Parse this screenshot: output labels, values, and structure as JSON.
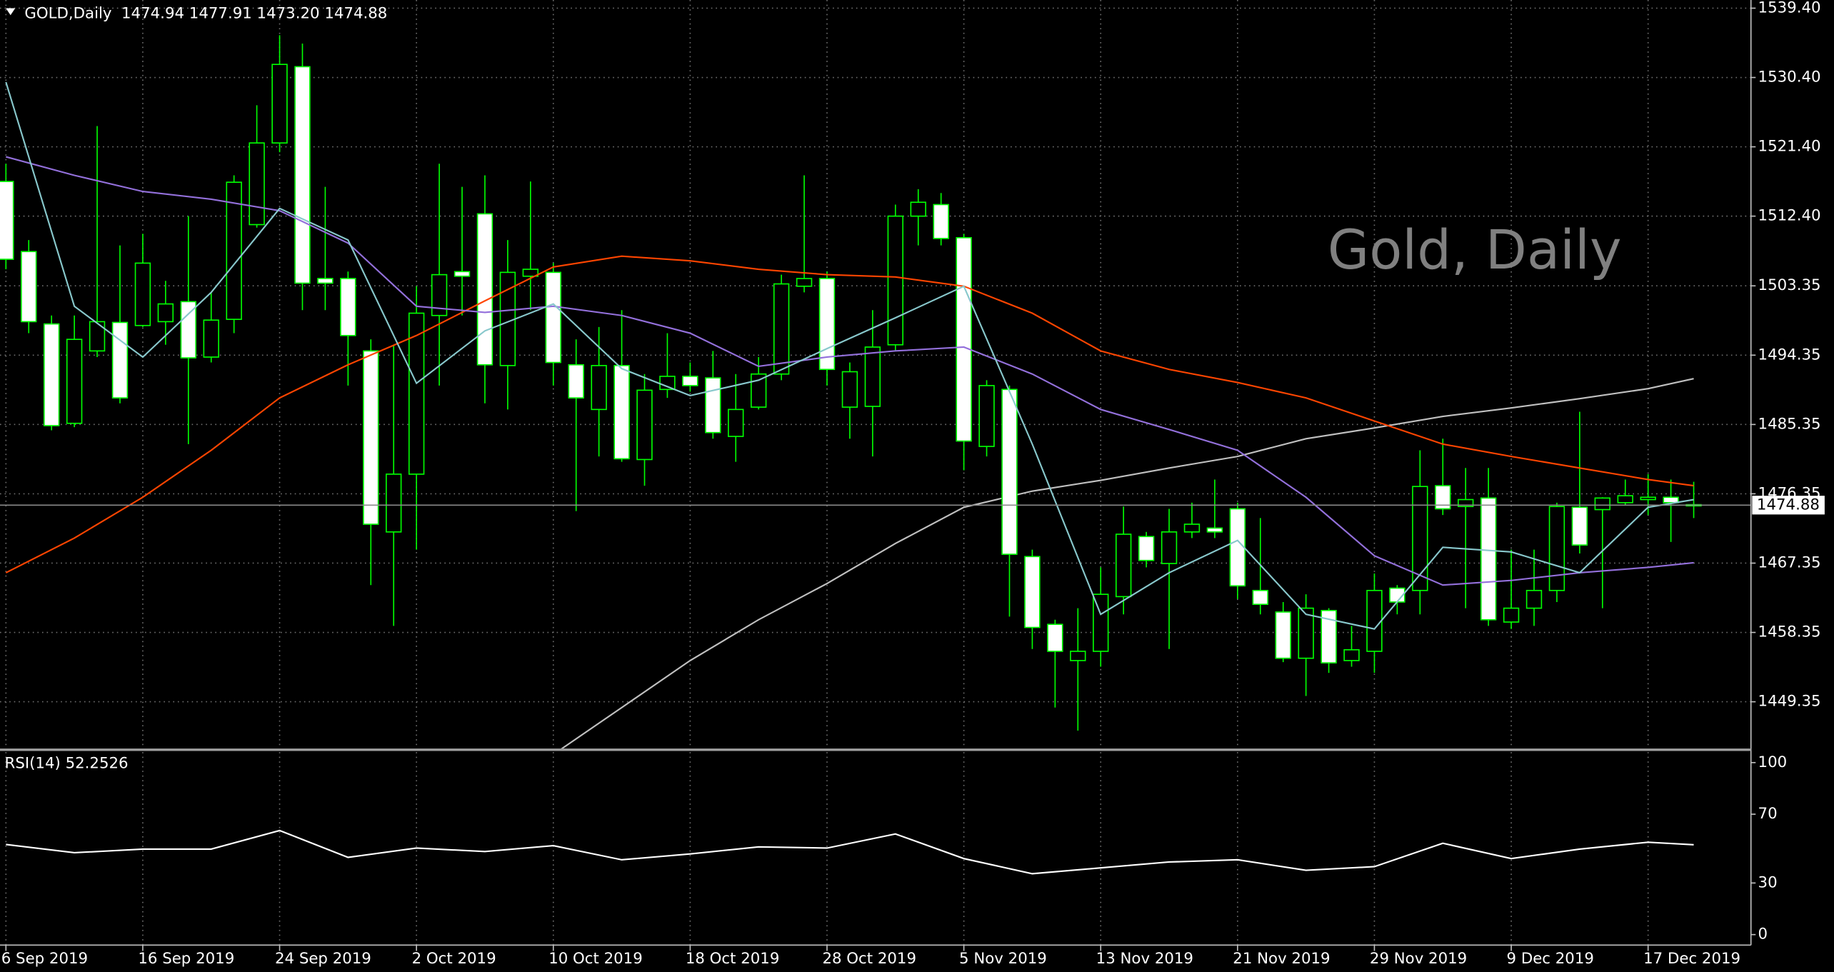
{
  "chart_data": [
    {
      "type": "candlestick",
      "header": "GOLD,Daily  1474.94 1477.91 1473.20 1474.88",
      "watermark": "Gold, Daily",
      "up_color": "#000000",
      "down_color": "#ffffff",
      "wick_color": "#00ff00",
      "grid": true,
      "xlim": [
        -0.26,
        76.51
      ],
      "ylim": [
        1443.27,
        1540.46
      ],
      "yticks": [
        {
          "value": 1539.4,
          "label": "1539.40"
        },
        {
          "value": 1530.4,
          "label": "1530.40"
        },
        {
          "value": 1521.4,
          "label": "1521.40"
        },
        {
          "value": 1512.4,
          "label": "1512.40"
        },
        1503.35,
        1494.35,
        1485.35,
        1476.35,
        1467.35,
        1458.35,
        1449.35
      ],
      "xticks": [
        {
          "value": 0,
          "label": "6 Sep 2019"
        },
        {
          "value": 6,
          "label": "16 Sep 2019"
        },
        {
          "value": 12,
          "label": "24 Sep 2019"
        },
        {
          "value": 18,
          "label": "2 Oct 2019"
        },
        {
          "value": 24,
          "label": "10 Oct 2019"
        },
        {
          "value": 30,
          "label": "18 Oct 2019"
        },
        {
          "value": 36,
          "label": "28 Oct 2019"
        },
        {
          "value": 42,
          "label": "5 Nov 2019"
        },
        {
          "value": 48,
          "label": "13 Nov 2019"
        },
        {
          "value": 54,
          "label": "21 Nov 2019"
        },
        {
          "value": 60,
          "label": "29 Nov 2019"
        },
        {
          "value": 66,
          "label": "9 Dec 2019"
        },
        {
          "value": 72,
          "label": "17 Dec 2019"
        }
      ],
      "candles": [
        [
          1516.9,
          1519.2,
          1505.5,
          1506.8
        ],
        [
          1507.8,
          1509.3,
          1497.2,
          1498.7
        ],
        [
          1498.4,
          1499.5,
          1484.6,
          1485.2
        ],
        [
          1485.5,
          1499.5,
          1485.0,
          1496.4
        ],
        [
          1494.9,
          1524.1,
          1494.1,
          1498.7
        ],
        [
          1498.6,
          1508.6,
          1488.1,
          1488.8
        ],
        [
          1498.2,
          1510.1,
          1498.0,
          1506.3
        ],
        [
          1498.7,
          1504.0,
          1495.7,
          1501.0
        ],
        [
          1501.3,
          1512.4,
          1482.8,
          1494.0
        ],
        [
          1494.1,
          1502.5,
          1493.4,
          1498.9
        ],
        [
          1499.0,
          1517.7,
          1497.2,
          1516.8
        ],
        [
          1511.3,
          1526.8,
          1510.9,
          1521.9
        ],
        [
          1521.9,
          1535.9,
          1520.7,
          1532.1
        ],
        [
          1531.8,
          1534.8,
          1500.2,
          1503.7
        ],
        [
          1504.3,
          1516.2,
          1500.2,
          1503.7
        ],
        [
          1504.3,
          1505.2,
          1490.4,
          1496.9
        ],
        [
          1494.9,
          1496.4,
          1464.5,
          1472.4
        ],
        [
          1471.4,
          1495.7,
          1459.2,
          1478.9
        ],
        [
          1478.9,
          1503.3,
          1469.1,
          1499.8
        ],
        [
          1499.5,
          1519.2,
          1490.4,
          1504.8
        ],
        [
          1505.2,
          1516.2,
          1499.5,
          1504.6
        ],
        [
          1512.7,
          1517.7,
          1488.1,
          1493.1
        ],
        [
          1493.0,
          1509.3,
          1487.3,
          1505.1
        ],
        [
          1504.6,
          1516.9,
          1500.2,
          1505.5
        ],
        [
          1505.1,
          1506.3,
          1490.4,
          1493.4
        ],
        [
          1493.1,
          1496.4,
          1474.1,
          1488.8
        ],
        [
          1487.3,
          1498.0,
          1481.2,
          1493.0
        ],
        [
          1493.0,
          1500.2,
          1480.5,
          1480.9
        ],
        [
          1480.8,
          1491.9,
          1477.4,
          1489.8
        ],
        [
          1489.9,
          1497.2,
          1488.8,
          1491.6
        ],
        [
          1491.6,
          1493.4,
          1489.6,
          1490.4
        ],
        [
          1491.4,
          1494.9,
          1483.5,
          1484.3
        ],
        [
          1483.8,
          1491.9,
          1480.5,
          1487.3
        ],
        [
          1487.6,
          1494.1,
          1487.3,
          1491.9
        ],
        [
          1491.9,
          1504.8,
          1491.1,
          1503.6
        ],
        [
          1503.3,
          1517.7,
          1502.5,
          1504.3
        ],
        [
          1504.3,
          1505.2,
          1490.4,
          1492.5
        ],
        [
          1487.6,
          1493.4,
          1483.5,
          1492.2
        ],
        [
          1487.7,
          1500.2,
          1481.2,
          1495.4
        ],
        [
          1495.7,
          1513.9,
          1494.9,
          1512.4
        ],
        [
          1512.4,
          1515.9,
          1508.6,
          1514.2
        ],
        [
          1513.9,
          1515.4,
          1508.6,
          1509.5
        ],
        [
          1509.6,
          1510.1,
          1479.4,
          1483.2
        ],
        [
          1482.5,
          1491.1,
          1481.2,
          1490.4
        ],
        [
          1489.9,
          1490.4,
          1460.4,
          1468.5
        ],
        [
          1468.2,
          1469.1,
          1456.2,
          1459.0
        ],
        [
          1459.4,
          1460.0,
          1448.6,
          1455.9
        ],
        [
          1454.7,
          1461.5,
          1445.6,
          1455.9
        ],
        [
          1455.9,
          1466.8,
          1453.9,
          1463.3
        ],
        [
          1463.0,
          1474.7,
          1460.7,
          1471.1
        ],
        [
          1470.8,
          1471.4,
          1466.8,
          1467.7
        ],
        [
          1467.3,
          1474.4,
          1456.2,
          1471.4
        ],
        [
          1471.4,
          1475.2,
          1470.6,
          1472.4
        ],
        [
          1471.9,
          1478.2,
          1470.6,
          1471.4
        ],
        [
          1474.4,
          1475.2,
          1462.7,
          1464.4
        ],
        [
          1463.8,
          1473.2,
          1460.7,
          1462.0
        ],
        [
          1461.0,
          1462.3,
          1454.5,
          1455.0
        ],
        [
          1455.0,
          1463.3,
          1450.1,
          1461.5
        ],
        [
          1461.2,
          1461.5,
          1453.1,
          1454.4
        ],
        [
          1454.7,
          1459.2,
          1453.9,
          1456.1
        ],
        [
          1455.9,
          1466.0,
          1453.1,
          1463.8
        ],
        [
          1464.1,
          1464.5,
          1460.7,
          1462.3
        ],
        [
          1463.8,
          1482.0,
          1460.7,
          1477.3
        ],
        [
          1477.4,
          1483.5,
          1473.6,
          1474.4
        ],
        [
          1474.7,
          1479.7,
          1461.5,
          1475.6
        ],
        [
          1475.8,
          1479.7,
          1459.2,
          1460.0
        ],
        [
          1459.7,
          1469.1,
          1458.8,
          1461.5
        ],
        [
          1461.5,
          1469.1,
          1459.2,
          1463.8
        ],
        [
          1463.8,
          1475.2,
          1462.3,
          1474.7
        ],
        [
          1474.6,
          1487.0,
          1468.6,
          1469.7
        ],
        [
          1474.3,
          1475.9,
          1461.5,
          1475.8
        ],
        [
          1475.2,
          1478.2,
          1474.9,
          1476.1
        ],
        [
          1475.6,
          1478.9,
          1473.6,
          1475.9
        ],
        [
          1475.9,
          1478.2,
          1470.1,
          1475.2
        ],
        [
          1474.94,
          1477.91,
          1473.2,
          1474.88
        ]
      ],
      "overlays": [
        {
          "color": "#c0c0c0",
          "x": [
            24,
            27,
            30,
            33,
            36,
            39,
            42,
            45,
            48,
            51,
            54,
            57,
            60,
            63,
            66,
            69,
            72,
            74
          ],
          "values": [
            1442.5,
            1448.6,
            1454.7,
            1460.0,
            1464.7,
            1469.9,
            1474.6,
            1476.7,
            1478.1,
            1479.7,
            1481.2,
            1483.5,
            1484.9,
            1486.4,
            1487.5,
            1488.7,
            1490.0,
            1491.3
          ]
        },
        {
          "color": "#ff4500",
          "x": [
            0,
            3,
            6,
            9,
            12,
            15,
            18,
            21,
            24,
            27,
            30,
            33,
            36,
            39,
            42,
            45,
            48,
            51,
            54,
            57,
            60,
            63,
            66,
            69,
            72,
            74
          ],
          "values": [
            1466.1,
            1470.6,
            1475.9,
            1482.0,
            1488.8,
            1493.1,
            1496.9,
            1501.4,
            1505.8,
            1507.2,
            1506.6,
            1505.5,
            1504.8,
            1504.5,
            1503.3,
            1499.8,
            1494.9,
            1492.5,
            1490.8,
            1488.8,
            1485.8,
            1482.8,
            1481.2,
            1479.7,
            1478.2,
            1477.4
          ]
        },
        {
          "color": "#9370db",
          "x": [
            0,
            3,
            6,
            9,
            12,
            15,
            18,
            21,
            24,
            27,
            30,
            33,
            36,
            39,
            42,
            45,
            48,
            51,
            54,
            57,
            60,
            63,
            66,
            69,
            72,
            74
          ],
          "values": [
            1520.1,
            1517.7,
            1515.6,
            1514.6,
            1513.1,
            1508.9,
            1500.7,
            1499.9,
            1500.7,
            1499.5,
            1497.2,
            1492.9,
            1494.1,
            1494.9,
            1495.4,
            1491.9,
            1487.3,
            1484.7,
            1482.0,
            1475.9,
            1468.3,
            1464.5,
            1465.1,
            1466.1,
            1466.8,
            1467.4
          ]
        },
        {
          "color": "#88c8cc",
          "x": [
            0,
            3,
            6,
            9,
            12,
            15,
            18,
            21,
            24,
            27,
            30,
            33,
            36,
            39,
            42,
            45,
            48,
            51,
            54,
            57,
            60,
            63,
            66,
            69,
            72,
            74
          ],
          "values": [
            1529.8,
            1500.7,
            1494.1,
            1502.5,
            1513.4,
            1509.3,
            1490.7,
            1497.5,
            1501.0,
            1492.6,
            1489.1,
            1491.1,
            1495.2,
            1499.2,
            1503.3,
            1482.8,
            1460.7,
            1466.1,
            1470.3,
            1460.7,
            1458.8,
            1469.4,
            1468.8,
            1466.1,
            1474.6,
            1475.6
          ]
        }
      ]
    },
    {
      "type": "line",
      "label": "RSI(14) 52.2526",
      "color": "#ffffff",
      "xlim": [
        -0.26,
        76.51
      ],
      "ylim": [
        -6.1,
        106.1
      ],
      "yticks": [
        100,
        70,
        30,
        0
      ],
      "x": [
        0,
        3,
        6,
        9,
        12,
        15,
        18,
        21,
        24,
        27,
        30,
        33,
        36,
        39,
        42,
        45,
        48,
        51,
        54,
        57,
        60,
        63,
        66,
        69,
        72,
        74
      ],
      "values": [
        52.4,
        47.6,
        49.7,
        49.7,
        60.5,
        44.9,
        50.3,
        48.3,
        51.7,
        43.5,
        46.9,
        51.0,
        50.3,
        58.5,
        44.2,
        35.4,
        38.8,
        42.2,
        43.5,
        37.4,
        39.5,
        53.1,
        44.2,
        49.7,
        53.7,
        52.2526
      ]
    }
  ]
}
